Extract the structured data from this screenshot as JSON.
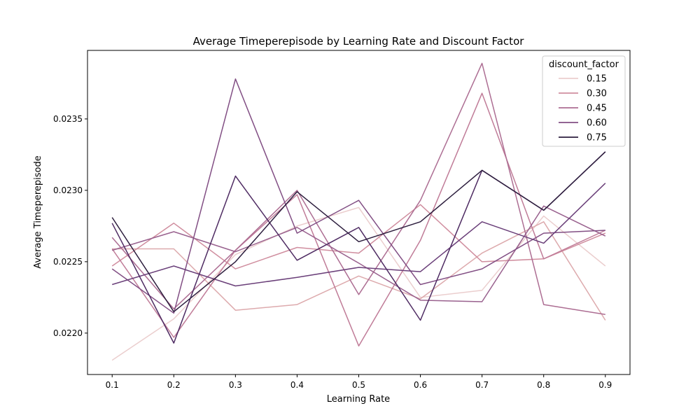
{
  "chart_data": {
    "type": "line",
    "title": "Average Timeperepisode by Learning Rate and Discount Factor",
    "xlabel": "Learning Rate",
    "ylabel": "Average Timeperepisode",
    "x": [
      0.1,
      0.2,
      0.3,
      0.4,
      0.5,
      0.6,
      0.7,
      0.8,
      0.9
    ],
    "x_tick_labels": [
      "0.1",
      "0.2",
      "0.3",
      "0.4",
      "0.5",
      "0.6",
      "0.7",
      "0.8",
      "0.9"
    ],
    "xlim": [
      0.06,
      0.94
    ],
    "y_ticks": [
      0.022,
      0.0225,
      0.023,
      0.0235
    ],
    "y_tick_labels": [
      "0.0220",
      "0.0225",
      "0.0230",
      "0.0235"
    ],
    "ylim": [
      0.02171,
      0.02398
    ],
    "grid": false,
    "legend": {
      "title": "discount_factor",
      "placement": "top-right"
    },
    "series": [
      {
        "name": "0.15",
        "color": "#ebcece",
        "values": [
          0.02181,
          0.0221,
          0.02255,
          0.02275,
          0.02288,
          0.02225,
          0.0223,
          0.02282,
          0.02247
        ]
      },
      {
        "name": "0.15",
        "color": "#ddaaad",
        "values": [
          0.02259,
          0.02259,
          0.02216,
          0.0222,
          0.0224,
          0.02224,
          0.02256,
          0.02278,
          0.02209
        ]
      },
      {
        "name": "0.30",
        "color": "#d08e9f",
        "values": [
          0.02247,
          0.02277,
          0.02245,
          0.0226,
          0.02256,
          0.0229,
          0.0225,
          0.02252,
          0.0227
        ]
      },
      {
        "name": "0.30",
        "color": "#c07c98",
        "values": [
          0.02259,
          0.02197,
          0.02258,
          0.02297,
          0.02191,
          0.02265,
          0.02368,
          0.02252,
          0.02272
        ]
      },
      {
        "name": "0.45",
        "color": "#ad6e93",
        "values": [
          0.02267,
          0.02217,
          0.02258,
          0.023,
          0.02227,
          0.02293,
          0.02389,
          0.0222,
          0.02213
        ]
      },
      {
        "name": "0.45",
        "color": "#99618e",
        "values": [
          0.02258,
          0.02271,
          0.02257,
          0.02274,
          0.02249,
          0.02223,
          0.02222,
          0.02289,
          0.02268
        ]
      },
      {
        "name": "0.60",
        "color": "#824f84",
        "values": [
          0.02245,
          0.02214,
          0.02378,
          0.0227,
          0.02293,
          0.02234,
          0.02245,
          0.0227,
          0.02272
        ]
      },
      {
        "name": "0.60",
        "color": "#6a3f79",
        "values": [
          0.02234,
          0.02247,
          0.02233,
          0.02239,
          0.02246,
          0.02243,
          0.02278,
          0.02263,
          0.02305
        ]
      },
      {
        "name": "0.75",
        "color": "#4f2c63",
        "values": [
          0.02277,
          0.02193,
          0.0231,
          0.02251,
          0.02274,
          0.02209,
          0.02314,
          0.02286,
          0.02327
        ]
      },
      {
        "name": "0.75",
        "color": "#2d1e3e",
        "values": [
          0.02281,
          0.02215,
          0.0225,
          0.02299,
          0.02264,
          0.02278,
          0.02314,
          0.02286,
          0.02327
        ]
      }
    ],
    "legend_entries": [
      {
        "label": "0.15",
        "color": "#ebcece"
      },
      {
        "label": "0.30",
        "color": "#d08e9f"
      },
      {
        "label": "0.45",
        "color": "#ad6e93"
      },
      {
        "label": "0.60",
        "color": "#824f84"
      },
      {
        "label": "0.75",
        "color": "#2d1e3e"
      }
    ]
  }
}
